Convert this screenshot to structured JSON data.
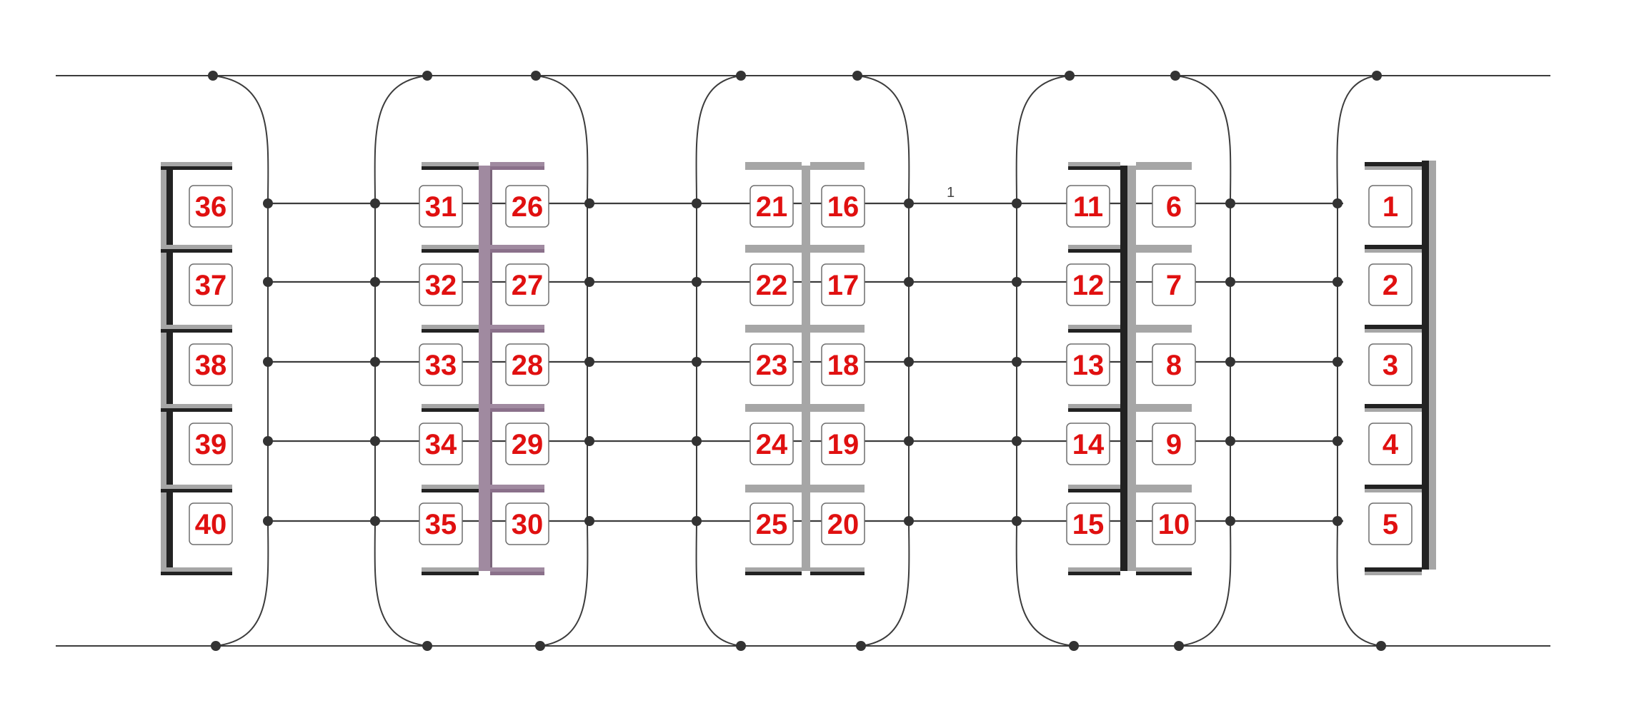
{
  "colors": {
    "background": "#ffffff",
    "line": "#3c3c3c",
    "node": "#333333",
    "shelf_dark": "#222222",
    "shelf_light": "#a6a6a6",
    "shelf_purple": "#a08aa0",
    "label_text": "#e01010",
    "label_border": "#6e6e6e",
    "label_fill": "#ffffff"
  },
  "row_marker": "1",
  "columns": [
    {
      "id": "col-right-edge",
      "style": "edge-right",
      "slots": [
        1,
        2,
        3,
        4,
        5
      ]
    },
    {
      "id": "col-bay-4",
      "style": "double-dark",
      "slots_left": [
        11,
        12,
        13,
        14,
        15
      ],
      "slots_right": [
        6,
        7,
        8,
        9,
        10
      ]
    },
    {
      "id": "col-bay-3",
      "style": "double-light",
      "slots_left": [
        21,
        22,
        23,
        24,
        25
      ],
      "slots_right": [
        16,
        17,
        18,
        19,
        20
      ]
    },
    {
      "id": "col-bay-2",
      "style": "double-purple",
      "slots_left": [
        31,
        32,
        33,
        34,
        35
      ],
      "slots_right": [
        26,
        27,
        28,
        29,
        30
      ]
    },
    {
      "id": "col-left-edge",
      "style": "edge-left",
      "slots": [
        36,
        37,
        38,
        39,
        40
      ]
    }
  ],
  "labels": {
    "l1": "1",
    "l2": "2",
    "l3": "3",
    "l4": "4",
    "l5": "5",
    "l6": "6",
    "l7": "7",
    "l8": "8",
    "l9": "9",
    "l10": "10",
    "l11": "11",
    "l12": "12",
    "l13": "13",
    "l14": "14",
    "l15": "15",
    "l16": "16",
    "l17": "17",
    "l18": "18",
    "l19": "19",
    "l20": "20",
    "l21": "21",
    "l22": "22",
    "l23": "23",
    "l24": "24",
    "l25": "25",
    "l26": "26",
    "l27": "27",
    "l28": "28",
    "l29": "29",
    "l30": "30",
    "l31": "31",
    "l32": "32",
    "l33": "33",
    "l34": "34",
    "l35": "35",
    "l36": "36",
    "l37": "37",
    "l38": "38",
    "l39": "39",
    "l40": "40"
  }
}
